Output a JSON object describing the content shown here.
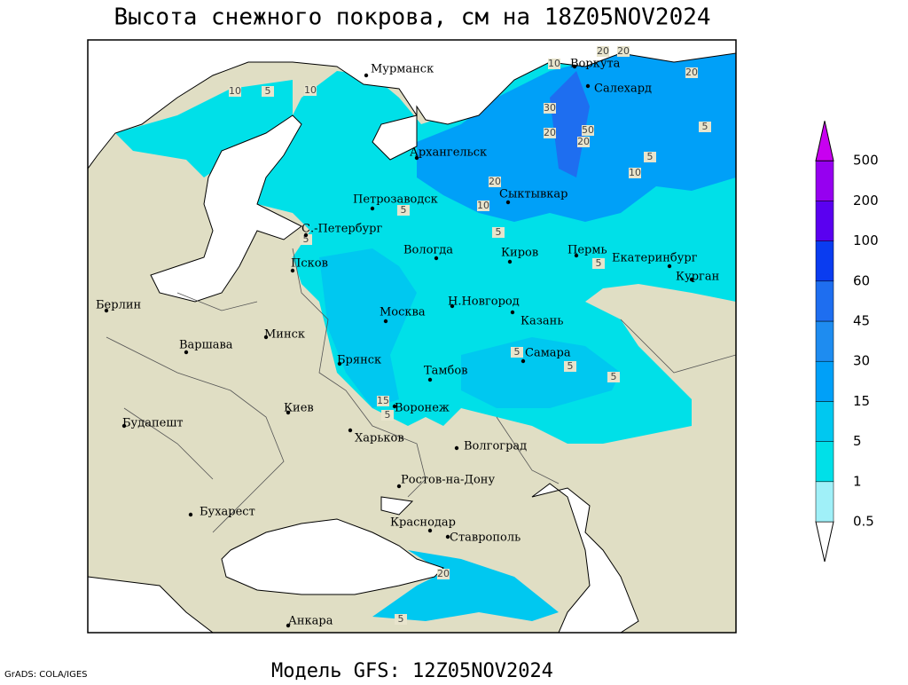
{
  "title": "Высота снежного покрова, см на 18Z05NOV2024",
  "subtitle": "Модель GFS: 12Z05NOV2024",
  "credit": "GrADS: COLA/IGES",
  "cities": [
    "Мурманск",
    "Воркута",
    "Салехард",
    "Архангельск",
    "Сыктывкар",
    "Петрозаводск",
    "С.-Петербург",
    "Вологда",
    "Киров",
    "Пермь",
    "Екатеринбург",
    "Курган",
    "Псков",
    "Берлин",
    "Н.Новгород",
    "Казань",
    "Москва",
    "Минск",
    "Варшава",
    "Самара",
    "Брянск",
    "Тамбов",
    "Воронеж",
    "Киев",
    "Будапешт",
    "Харьков",
    "Волгоград",
    "Ростов-на-Дону",
    "Бухарест",
    "Краснодар",
    "Ставрополь",
    "Анкара"
  ],
  "contour_labels": [
    10,
    20,
    20,
    20,
    10,
    5,
    10,
    30,
    20,
    50,
    20,
    5,
    5,
    10,
    20,
    10,
    5,
    5,
    5,
    5,
    5,
    5,
    5,
    15,
    5,
    20,
    5
  ],
  "legend": {
    "levels": [
      0.5,
      1,
      5,
      15,
      30,
      45,
      60,
      100,
      200,
      500
    ],
    "colors": [
      "#ffffff",
      "#a0f0f8",
      "#00e0e8",
      "#00c8f0",
      "#00a0f8",
      "#1e8cf0",
      "#1e6ef0",
      "#0a3cf0",
      "#5a00f0",
      "#9600f0",
      "#c800f0"
    ]
  }
}
